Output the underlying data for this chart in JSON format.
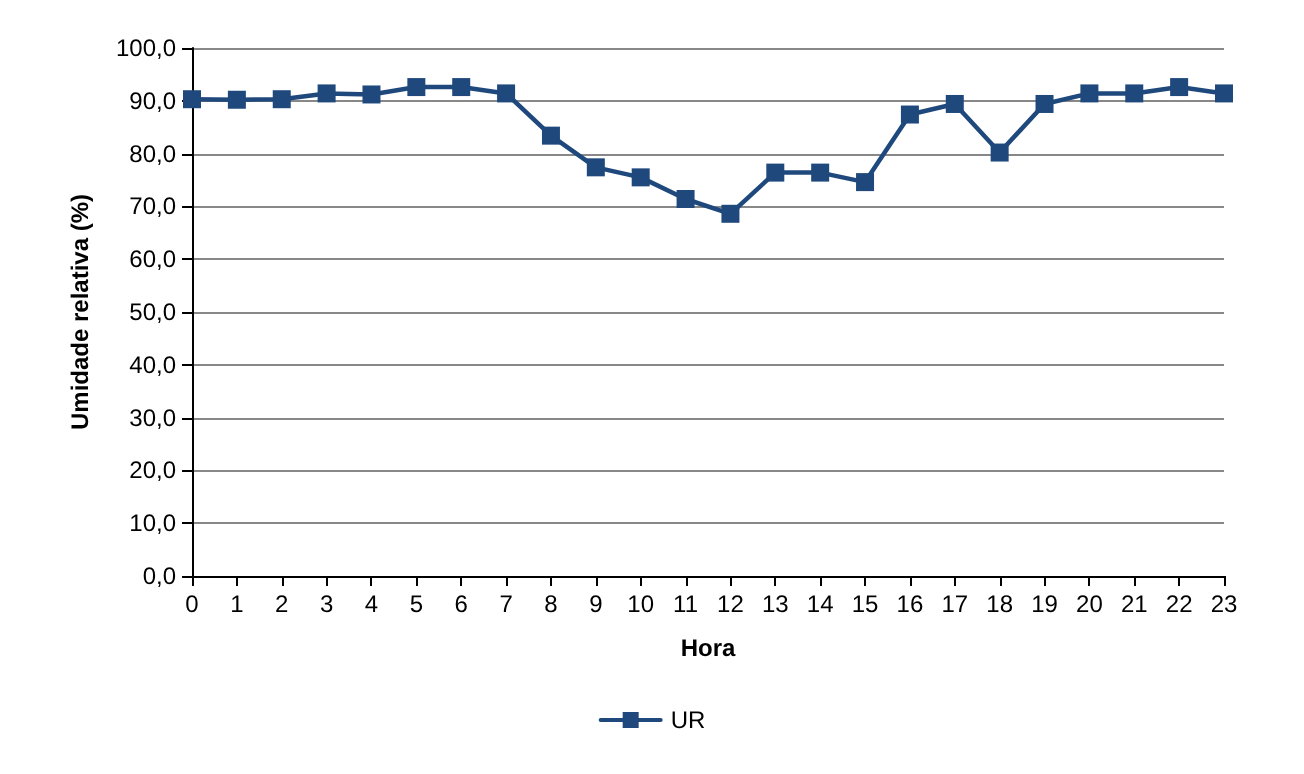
{
  "chart_data": {
    "type": "line",
    "xlabel": "Hora",
    "ylabel": "Umidade relativa (%)",
    "x": [
      0,
      1,
      2,
      3,
      4,
      5,
      6,
      7,
      8,
      9,
      10,
      11,
      12,
      13,
      14,
      15,
      16,
      17,
      18,
      19,
      20,
      21,
      22,
      23
    ],
    "series": [
      {
        "name": "UR",
        "color": "#1f497d",
        "values": [
          90.3,
          90.2,
          90.3,
          91.4,
          91.2,
          92.6,
          92.6,
          91.4,
          83.4,
          77.4,
          75.5,
          71.4,
          68.6,
          76.4,
          76.4,
          74.6,
          87.4,
          89.4,
          80.2,
          89.4,
          91.4,
          91.4,
          92.6,
          91.4
        ]
      }
    ],
    "xlim": [
      0,
      23
    ],
    "xticks": [
      0,
      1,
      2,
      3,
      4,
      5,
      6,
      7,
      8,
      9,
      10,
      11,
      12,
      13,
      14,
      15,
      16,
      17,
      18,
      19,
      20,
      21,
      22,
      23
    ],
    "ylim": [
      0,
      100
    ],
    "yticks": [
      {
        "value": 0,
        "label": "0,0"
      },
      {
        "value": 10,
        "label": "10,0"
      },
      {
        "value": 20,
        "label": "20,0"
      },
      {
        "value": 30,
        "label": "30,0"
      },
      {
        "value": 40,
        "label": "40,0"
      },
      {
        "value": 50,
        "label": "50,0"
      },
      {
        "value": 60,
        "label": "60,0"
      },
      {
        "value": 70,
        "label": "70,0"
      },
      {
        "value": 80,
        "label": "80,0"
      },
      {
        "value": 90,
        "label": "90,0"
      },
      {
        "value": 100,
        "label": "100,0"
      }
    ],
    "grid": "y",
    "legend": "bottom",
    "marker": "square",
    "line_style": "solid"
  }
}
